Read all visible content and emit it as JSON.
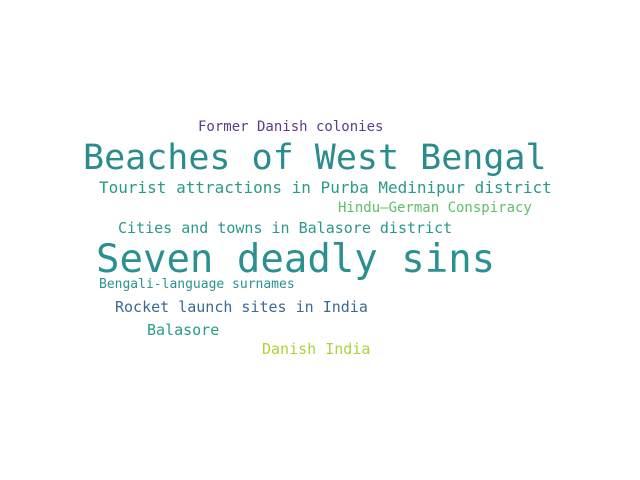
{
  "words": [
    {
      "text": "Former Danish colonies",
      "color": "#5a3d8a"
    },
    {
      "text": "Beaches of West Bengal",
      "color": "#2a8c8e"
    },
    {
      "text": "Tourist attractions in Purba Medinipur district",
      "color": "#2a9a88"
    },
    {
      "text": "Hindu–German Conspiracy",
      "color": "#5dc06a"
    },
    {
      "text": "Cities and towns in Balasore district",
      "color": "#2a9890"
    },
    {
      "text": "Seven deadly sins",
      "color": "#2b9090"
    },
    {
      "text": "Bengali-language surnames",
      "color": "#2a9290"
    },
    {
      "text": "Rocket launch sites in India",
      "color": "#3a6a95"
    },
    {
      "text": "Balasore",
      "color": "#2a9a88"
    },
    {
      "text": "Danish India",
      "color": "#aad438"
    }
  ]
}
